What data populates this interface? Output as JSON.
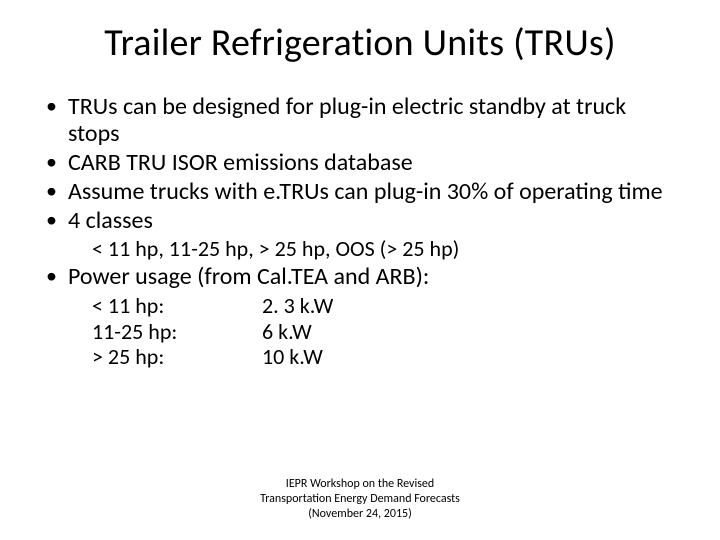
{
  "title": "Trailer Refrigeration Units (TRUs)",
  "bullets": {
    "b1": "TRUs can be designed for plug-in electric standby at truck stops",
    "b2": "CARB TRU ISOR emissions database",
    "b3": "Assume trucks with e.TRUs can plug-in 30% of operating time",
    "b4": "4 classes",
    "b4_sub": "< 11 hp, 11-25 hp, > 25 hp, OOS (> 25 hp)",
    "b5": "Power usage (from Cal.TEA and ARB):"
  },
  "power": {
    "rows": [
      {
        "label": "< 11 hp:",
        "value": "2. 3 k.W"
      },
      {
        "label": "11-25 hp:",
        "value": "6 k.W"
      },
      {
        "label": "> 25 hp:",
        "value": "10 k.W"
      }
    ]
  },
  "footer": {
    "line1": "IEPR Workshop on the Revised",
    "line2": "Transportation Energy Demand Forecasts",
    "line3": "(November 24, 2015)"
  },
  "colors": {
    "background": "#ffffff",
    "text": "#000000"
  },
  "typography": {
    "title_fontsize": 38,
    "bullet_fontsize": 24,
    "sub_fontsize": 22,
    "footer_fontsize": 12,
    "font_family": "Calibri"
  }
}
